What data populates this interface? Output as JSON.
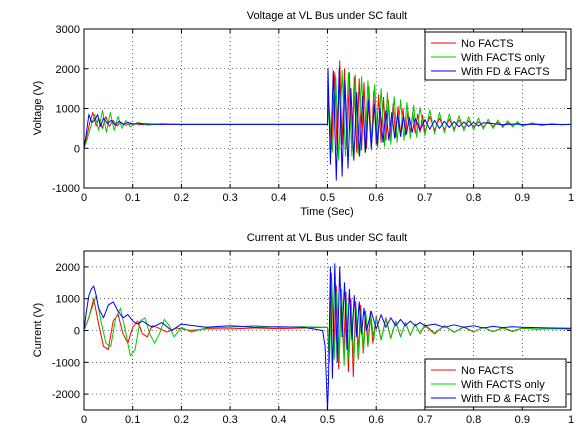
{
  "chart_data": [
    {
      "type": "line",
      "title": "Voltage at VL Bus under SC fault",
      "xlabel": "Time (Sec)",
      "ylabel": "Voltage (V)",
      "xlim": [
        0,
        1
      ],
      "ylim": [
        -1000,
        3000
      ],
      "xticks": [
        0,
        0.1,
        0.2,
        0.3,
        0.4,
        0.5,
        0.6,
        0.7,
        0.8,
        0.9,
        1
      ],
      "xtick_labels": [
        "0",
        "0.1",
        "0.2",
        "0.3",
        "0.4",
        "0.5",
        "0.6",
        "0.7",
        "0.8",
        "0.9",
        "1"
      ],
      "yticks": [
        -1000,
        0,
        1000,
        2000,
        3000
      ],
      "ytick_labels": [
        "-1000",
        "0",
        "1000",
        "2000",
        "3000"
      ],
      "grid": true,
      "legend_position": "top-right",
      "series": [
        {
          "name": "No FACTS",
          "color": "#ff0000",
          "x": [
            0,
            0.005,
            0.012,
            0.018,
            0.025,
            0.03,
            0.038,
            0.045,
            0.052,
            0.06,
            0.068,
            0.075,
            0.085,
            0.1,
            0.12,
            0.15,
            0.2,
            0.3,
            0.4,
            0.5,
            0.502,
            0.508,
            0.515,
            0.52,
            0.525,
            0.53,
            0.535,
            0.54,
            0.545,
            0.55,
            0.555,
            0.56,
            0.565,
            0.57,
            0.575,
            0.58,
            0.585,
            0.59,
            0.595,
            0.6,
            0.605,
            0.61,
            0.615,
            0.62,
            0.625,
            0.63,
            0.635,
            0.64,
            0.645,
            0.65,
            0.655,
            0.66,
            0.665,
            0.67,
            0.675,
            0.68,
            0.685,
            0.69,
            0.695,
            0.7,
            0.71,
            0.72,
            0.73,
            0.74,
            0.75,
            0.76,
            0.77,
            0.78,
            0.79,
            0.8,
            0.81,
            0.82,
            0.83,
            0.84,
            0.85,
            0.86,
            0.87,
            0.88,
            0.89,
            0.9,
            0.92,
            0.94,
            0.96,
            0.98,
            1.0
          ],
          "y": [
            0,
            250,
            650,
            900,
            560,
            750,
            500,
            800,
            550,
            700,
            560,
            660,
            580,
            620,
            590,
            610,
            600,
            600,
            600,
            600,
            1200,
            0,
            1900,
            -200,
            2200,
            100,
            2000,
            0,
            1900,
            -150,
            1800,
            -100,
            1750,
            -50,
            1650,
            0,
            1550,
            50,
            1450,
            100,
            1350,
            150,
            1280,
            200,
            1200,
            250,
            1120,
            280,
            1050,
            300,
            1000,
            330,
            950,
            360,
            900,
            380,
            860,
            400,
            830,
            420,
            800,
            450,
            760,
            470,
            730,
            490,
            710,
            510,
            690,
            530,
            670,
            540,
            660,
            550,
            650,
            560,
            640,
            565,
            635,
            570,
            620,
            590,
            610,
            595,
            600
          ]
        },
        {
          "name": "With FACTS only",
          "color": "#00cc00",
          "x": [
            0,
            0.006,
            0.014,
            0.022,
            0.03,
            0.038,
            0.046,
            0.054,
            0.062,
            0.07,
            0.078,
            0.086,
            0.095,
            0.11,
            0.13,
            0.16,
            0.2,
            0.3,
            0.4,
            0.5,
            0.503,
            0.51,
            0.517,
            0.523,
            0.53,
            0.537,
            0.543,
            0.55,
            0.557,
            0.563,
            0.57,
            0.577,
            0.583,
            0.59,
            0.597,
            0.603,
            0.61,
            0.617,
            0.623,
            0.63,
            0.637,
            0.643,
            0.65,
            0.657,
            0.663,
            0.67,
            0.677,
            0.683,
            0.69,
            0.7,
            0.71,
            0.72,
            0.73,
            0.74,
            0.75,
            0.76,
            0.77,
            0.78,
            0.79,
            0.8,
            0.81,
            0.82,
            0.83,
            0.84,
            0.85,
            0.86,
            0.87,
            0.88,
            0.89,
            0.9,
            0.92,
            0.94,
            0.96,
            0.98,
            1.0
          ],
          "y": [
            0,
            200,
            550,
            850,
            450,
            950,
            400,
            900,
            450,
            800,
            500,
            700,
            540,
            650,
            580,
            620,
            600,
            600,
            600,
            600,
            1100,
            -100,
            1800,
            -300,
            1950,
            -200,
            1900,
            -200,
            1850,
            -150,
            1800,
            -100,
            1700,
            -50,
            1600,
            0,
            1500,
            50,
            1400,
            100,
            1300,
            150,
            1220,
            200,
            1150,
            250,
            1080,
            280,
            1020,
            320,
            960,
            360,
            900,
            390,
            860,
            420,
            820,
            440,
            790,
            460,
            760,
            480,
            730,
            500,
            710,
            520,
            690,
            540,
            670,
            550,
            640,
            570,
            620,
            590,
            600
          ]
        },
        {
          "name": "With FD & FACTS",
          "color": "#0000ff",
          "x": [
            0,
            0.004,
            0.01,
            0.016,
            0.022,
            0.028,
            0.034,
            0.04,
            0.048,
            0.056,
            0.064,
            0.072,
            0.08,
            0.09,
            0.1,
            0.12,
            0.15,
            0.2,
            0.3,
            0.4,
            0.5,
            0.501,
            0.506,
            0.512,
            0.518,
            0.524,
            0.53,
            0.536,
            0.542,
            0.548,
            0.554,
            0.56,
            0.566,
            0.572,
            0.578,
            0.584,
            0.59,
            0.596,
            0.602,
            0.608,
            0.614,
            0.62,
            0.626,
            0.632,
            0.638,
            0.644,
            0.65,
            0.656,
            0.662,
            0.668,
            0.674,
            0.68,
            0.69,
            0.7,
            0.71,
            0.72,
            0.73,
            0.74,
            0.75,
            0.76,
            0.77,
            0.78,
            0.79,
            0.8,
            0.81,
            0.82,
            0.84,
            0.86,
            0.88,
            0.9,
            0.93,
            0.96,
            1.0
          ],
          "y": [
            0,
            300,
            850,
            650,
            700,
            850,
            550,
            760,
            620,
            700,
            580,
            680,
            600,
            650,
            610,
            620,
            600,
            600,
            600,
            600,
            600,
            2000,
            -400,
            1950,
            -800,
            2000,
            -700,
            1700,
            -500,
            1500,
            -300,
            1400,
            -200,
            1300,
            -100,
            1200,
            0,
            1100,
            100,
            1000,
            150,
            950,
            200,
            900,
            250,
            850,
            300,
            800,
            350,
            780,
            400,
            750,
            450,
            720,
            480,
            700,
            500,
            680,
            520,
            670,
            540,
            660,
            550,
            650,
            560,
            640,
            620,
            590,
            610,
            600,
            605,
            598,
            600
          ]
        }
      ]
    },
    {
      "type": "line",
      "title": "Current at VL Bus under SC fault",
      "xlabel": "",
      "ylabel": "Current (V)",
      "xlim": [
        0,
        1
      ],
      "ylim": [
        -2500,
        2500
      ],
      "xticks": [
        0,
        0.1,
        0.2,
        0.3,
        0.4,
        0.5,
        0.6,
        0.7,
        0.8,
        0.9,
        1
      ],
      "xtick_labels": [
        "0",
        "0.1",
        "0.2",
        "0.3",
        "0.4",
        "0.5",
        "0.6",
        "0.7",
        "0.8",
        "0.9",
        "1"
      ],
      "yticks": [
        -2000,
        -1000,
        0,
        1000,
        2000
      ],
      "ytick_labels": [
        "-2000",
        "-1000",
        "0",
        "1000",
        "2000"
      ],
      "grid": true,
      "legend_position": "bottom-right",
      "series": [
        {
          "name": "No FACTS",
          "color": "#ff0000",
          "x": [
            0,
            0.01,
            0.02,
            0.03,
            0.04,
            0.05,
            0.06,
            0.07,
            0.08,
            0.09,
            0.1,
            0.11,
            0.12,
            0.13,
            0.14,
            0.15,
            0.17,
            0.19,
            0.22,
            0.25,
            0.3,
            0.35,
            0.4,
            0.45,
            0.5,
            0.503,
            0.508,
            0.513,
            0.518,
            0.523,
            0.528,
            0.533,
            0.538,
            0.543,
            0.548,
            0.553,
            0.558,
            0.563,
            0.568,
            0.573,
            0.578,
            0.583,
            0.588,
            0.593,
            0.6,
            0.61,
            0.62,
            0.63,
            0.64,
            0.65,
            0.66,
            0.67,
            0.68,
            0.69,
            0.7,
            0.72,
            0.74,
            0.76,
            0.78,
            0.8,
            0.82,
            0.84,
            0.86,
            0.88,
            0.9,
            0.93,
            0.96,
            1.0
          ],
          "y": [
            0,
            400,
            1000,
            200,
            -500,
            -600,
            300,
            500,
            -100,
            -400,
            100,
            300,
            -100,
            -200,
            150,
            100,
            -50,
            80,
            0,
            50,
            50,
            80,
            60,
            80,
            100,
            -800,
            1800,
            -600,
            1400,
            -1200,
            1100,
            -700,
            1200,
            -1300,
            1000,
            -1450,
            900,
            -900,
            800,
            -700,
            600,
            -500,
            600,
            -400,
            450,
            -300,
            400,
            -250,
            300,
            -200,
            250,
            -150,
            200,
            -100,
            150,
            -100,
            150,
            -50,
            100,
            -50,
            100,
            -40,
            80,
            -30,
            70,
            40,
            60,
            50
          ]
        },
        {
          "name": "With FACTS only",
          "color": "#00cc00",
          "x": [
            0,
            0.012,
            0.025,
            0.035,
            0.045,
            0.055,
            0.065,
            0.075,
            0.085,
            0.095,
            0.105,
            0.115,
            0.125,
            0.135,
            0.145,
            0.155,
            0.165,
            0.175,
            0.185,
            0.2,
            0.22,
            0.25,
            0.3,
            0.35,
            0.4,
            0.45,
            0.5,
            0.504,
            0.509,
            0.514,
            0.519,
            0.524,
            0.529,
            0.534,
            0.539,
            0.544,
            0.549,
            0.554,
            0.559,
            0.564,
            0.569,
            0.574,
            0.579,
            0.584,
            0.589,
            0.595,
            0.6,
            0.61,
            0.62,
            0.63,
            0.64,
            0.65,
            0.66,
            0.67,
            0.68,
            0.69,
            0.7,
            0.72,
            0.74,
            0.76,
            0.78,
            0.8,
            0.82,
            0.84,
            0.86,
            0.88,
            0.9,
            0.93,
            0.96,
            1.0
          ],
          "y": [
            0,
            500,
            1100,
            300,
            -400,
            -500,
            400,
            700,
            0,
            -800,
            -600,
            300,
            400,
            -100,
            -400,
            -100,
            350,
            150,
            -200,
            100,
            -50,
            80,
            100,
            150,
            100,
            120,
            100,
            -1000,
            1500,
            -900,
            1200,
            -1000,
            1300,
            -1100,
            900,
            -900,
            800,
            -1000,
            700,
            -800,
            600,
            -700,
            500,
            -400,
            500,
            -300,
            400,
            -300,
            350,
            -250,
            300,
            -200,
            250,
            -150,
            200,
            -100,
            180,
            -80,
            150,
            -60,
            120,
            -40,
            100,
            -30,
            90,
            -20,
            80,
            50,
            60,
            40
          ]
        },
        {
          "name": "With FD & FACTS",
          "color": "#0000ff",
          "x": [
            0,
            0.005,
            0.01,
            0.015,
            0.02,
            0.025,
            0.03,
            0.04,
            0.05,
            0.06,
            0.07,
            0.08,
            0.09,
            0.1,
            0.11,
            0.12,
            0.14,
            0.16,
            0.18,
            0.2,
            0.25,
            0.3,
            0.35,
            0.4,
            0.45,
            0.49,
            0.495,
            0.5,
            0.502,
            0.506,
            0.51,
            0.515,
            0.52,
            0.525,
            0.53,
            0.535,
            0.54,
            0.545,
            0.55,
            0.555,
            0.56,
            0.565,
            0.57,
            0.575,
            0.58,
            0.59,
            0.6,
            0.61,
            0.62,
            0.63,
            0.64,
            0.65,
            0.66,
            0.67,
            0.68,
            0.69,
            0.7,
            0.72,
            0.74,
            0.76,
            0.78,
            0.8,
            0.82,
            0.84,
            0.86,
            0.88,
            0.9,
            0.93,
            0.96,
            1.0
          ],
          "y": [
            0,
            600,
            1100,
            1300,
            1400,
            1100,
            700,
            400,
            800,
            900,
            600,
            400,
            500,
            300,
            200,
            300,
            100,
            250,
            0,
            200,
            100,
            150,
            100,
            120,
            100,
            0,
            -500,
            -2500,
            -1600,
            2000,
            -1500,
            2100,
            -1000,
            2000,
            -200,
            1500,
            -600,
            1300,
            -300,
            1100,
            -200,
            900,
            -100,
            700,
            0,
            600,
            50,
            500,
            100,
            400,
            150,
            350,
            150,
            300,
            150,
            250,
            150,
            200,
            100,
            180,
            100,
            150,
            80,
            130,
            90,
            120,
            100,
            90,
            80,
            70
          ]
        }
      ]
    }
  ]
}
